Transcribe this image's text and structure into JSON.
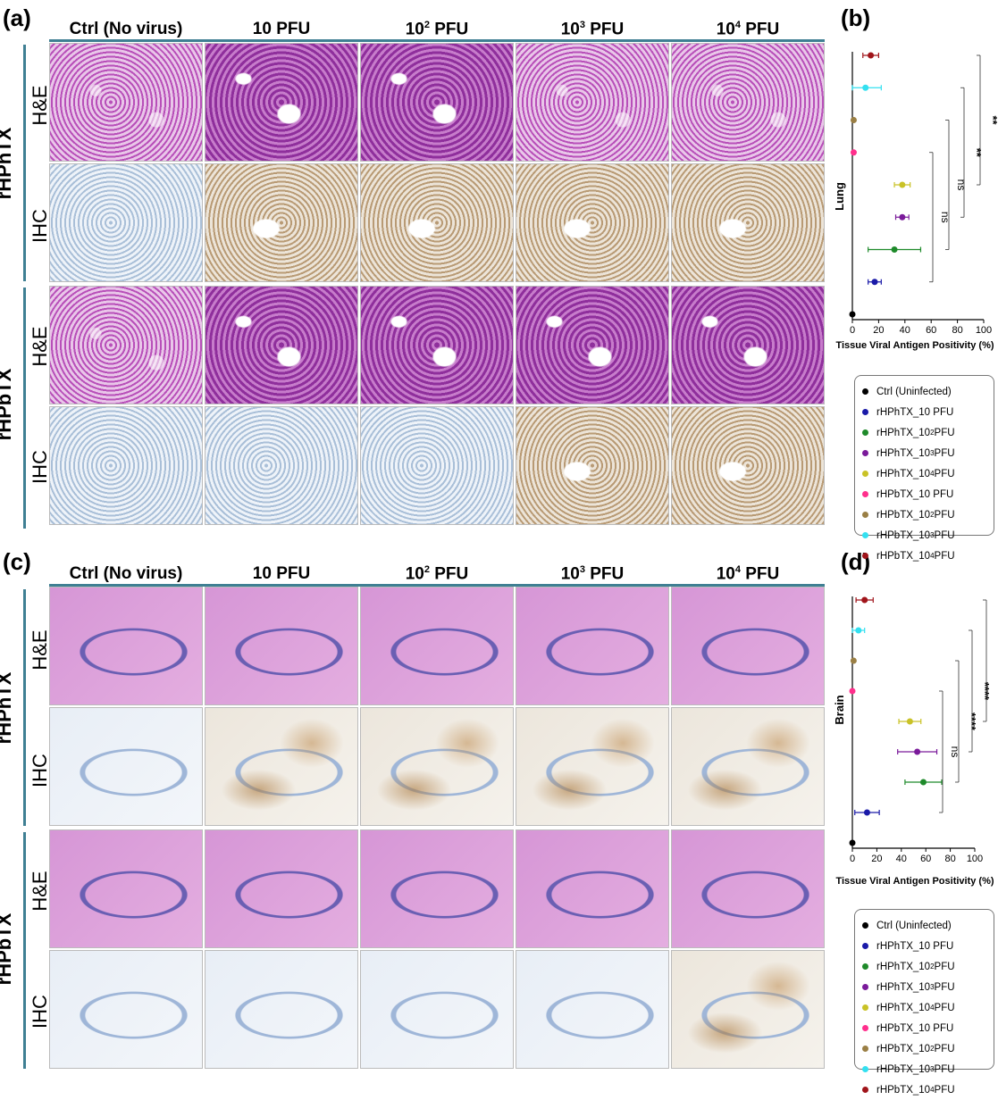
{
  "panels": {
    "a": "(a)",
    "b": "(b)",
    "c": "(c)",
    "d": "(d)"
  },
  "columns": [
    "Ctrl (No virus)",
    "10 PFU",
    "10",
    "10",
    "10"
  ],
  "column_suffix": {
    "sup2": "2",
    "sup3": "3",
    "sup4": "4",
    "pfu": " PFU"
  },
  "groups": [
    "rHPhTX",
    "rHPbTX"
  ],
  "row_labels": [
    "H&E",
    "IHC"
  ],
  "legend": [
    {
      "label": "Ctrl (Uninfected)",
      "color": "#000000"
    },
    {
      "label": "rHPhTX_10 PFU",
      "color": "#1a1aa8"
    },
    {
      "label": "rHPhTX_10",
      "sup": "2",
      "suffix": " PFU",
      "color": "#1e8a2a"
    },
    {
      "label": "rHPhTX_10",
      "sup": "3",
      "suffix": " PFU",
      "color": "#7a1a9a"
    },
    {
      "label": "rHPhTX_10",
      "sup": "4",
      "suffix": " PFU",
      "color": "#c9c227"
    },
    {
      "label": "rHPbTX_10 PFU",
      "color": "#ff2f8c"
    },
    {
      "label": "rHPbTX_10",
      "sup": "2",
      "suffix": " PFU",
      "color": "#9a7f45"
    },
    {
      "label": "rHPbTX_10",
      "sup": "3",
      "suffix": " PFU",
      "color": "#33e0f0"
    },
    {
      "label": "rHPbTX_10",
      "sup": "4",
      "suffix": " PFU",
      "color": "#a0141a"
    }
  ],
  "chart_data": [
    {
      "type": "scatter",
      "panel": "b",
      "ylabel": "Lung",
      "xlabel": "Tissue Viral Antigen Positivity (%)",
      "xlim": [
        0,
        100
      ],
      "xticks": [
        0,
        20,
        40,
        60,
        80,
        100
      ],
      "points": [
        {
          "series": 0,
          "x": 0,
          "err": 0
        },
        {
          "series": 1,
          "x": 17,
          "err": 5
        },
        {
          "series": 2,
          "x": 32,
          "err": 20
        },
        {
          "series": 3,
          "x": 38,
          "err": 5
        },
        {
          "series": 4,
          "x": 38,
          "err": 6
        },
        {
          "series": 5,
          "x": 1,
          "err": 0
        },
        {
          "series": 6,
          "x": 1,
          "err": 0
        },
        {
          "series": 7,
          "x": 10,
          "err": 12
        },
        {
          "series": 8,
          "x": 14,
          "err": 6
        }
      ],
      "significance": [
        "ns",
        "ns",
        "**",
        "**"
      ]
    },
    {
      "type": "scatter",
      "panel": "d",
      "ylabel": "Brain",
      "xlabel": "Tissue Viral Antigen Positivity (%)",
      "xlim": [
        0,
        100
      ],
      "xticks": [
        0,
        20,
        40,
        60,
        80,
        100
      ],
      "points": [
        {
          "series": 0,
          "x": 0,
          "err": 0
        },
        {
          "series": 1,
          "x": 12,
          "err": 10
        },
        {
          "series": 2,
          "x": 58,
          "err": 15
        },
        {
          "series": 3,
          "x": 53,
          "err": 16
        },
        {
          "series": 4,
          "x": 47,
          "err": 9
        },
        {
          "series": 5,
          "x": 0,
          "err": 0
        },
        {
          "series": 6,
          "x": 1,
          "err": 0
        },
        {
          "series": 7,
          "x": 5,
          "err": 5
        },
        {
          "series": 8,
          "x": 10,
          "err": 7
        }
      ],
      "significance": [
        "ns",
        "****",
        "****",
        "***"
      ]
    }
  ]
}
